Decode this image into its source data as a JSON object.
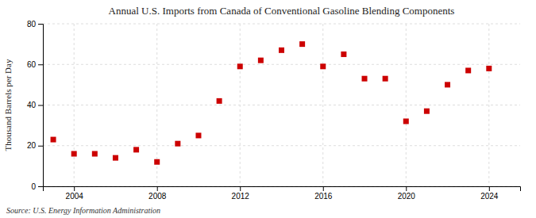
{
  "chart_data": {
    "type": "scatter",
    "title": "Annual U.S. Imports from Canada of Conventional Gasoline Blending Components",
    "ylabel": "Thousand Barrels per Day",
    "source": "Source: U.S. Energy Information Administration",
    "x": [
      2003,
      2004,
      2005,
      2006,
      2007,
      2008,
      2009,
      2010,
      2011,
      2012,
      2013,
      2014,
      2015,
      2016,
      2017,
      2018,
      2019,
      2020,
      2021,
      2022,
      2023,
      2024
    ],
    "values": [
      23,
      16,
      16,
      14,
      18,
      12,
      21,
      25,
      42,
      59,
      62,
      67,
      70,
      59,
      65,
      53,
      53,
      32,
      37,
      50,
      57,
      58
    ],
    "color": "#cc0000",
    "marker": "square",
    "xlim": [
      2002.5,
      2025.5
    ],
    "ylim": [
      0,
      80
    ],
    "xticks": [
      2004,
      2008,
      2012,
      2016,
      2020,
      2024
    ],
    "yticks": [
      0,
      20,
      40,
      60,
      80
    ],
    "grid": true
  }
}
